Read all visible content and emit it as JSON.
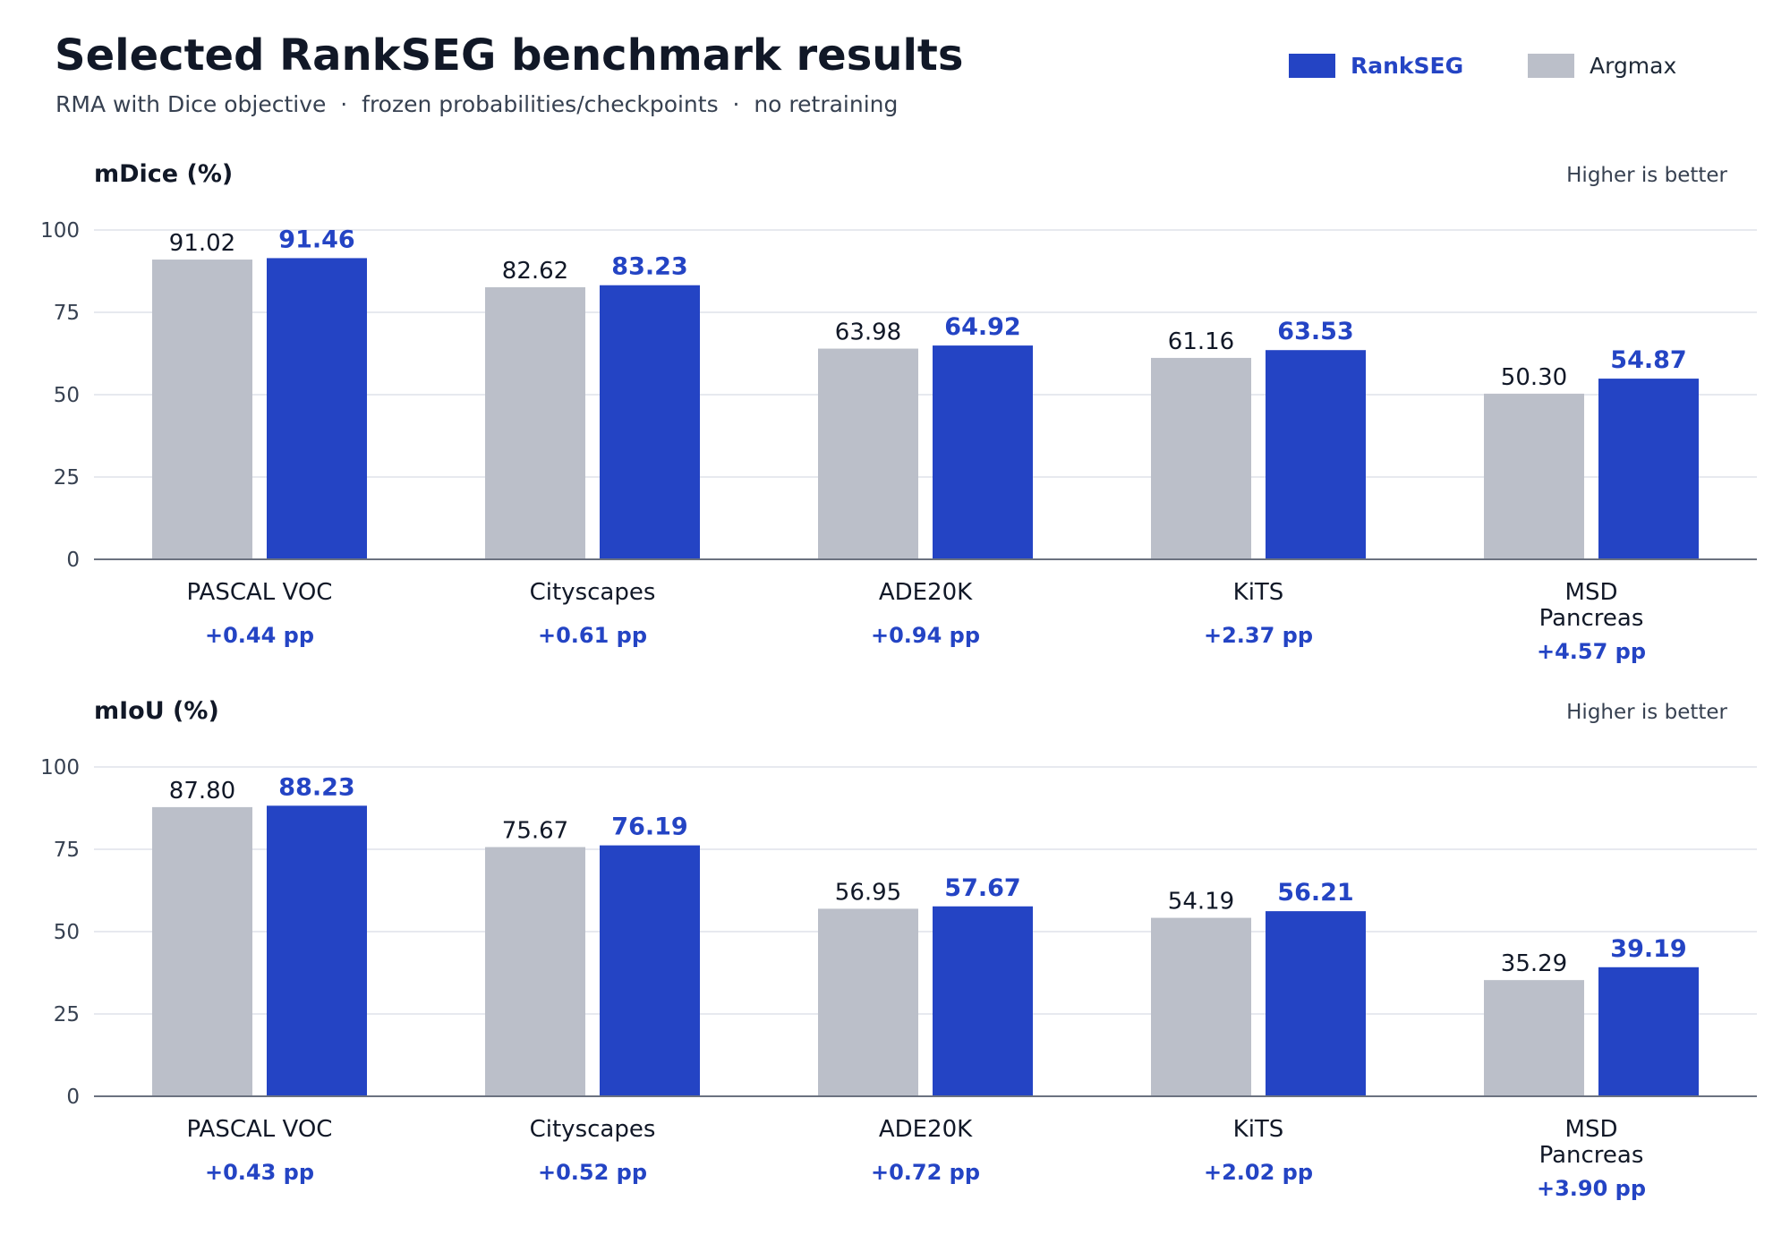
{
  "header": {
    "title": "Selected RankSEG benchmark results",
    "subtitle": "RMA with Dice objective  ·  frozen probabilities/checkpoints  ·  no retraining"
  },
  "legend": {
    "rankseg_label": "RankSEG",
    "argmax_label": "Argmax"
  },
  "colors": {
    "rankseg": "#2444c4",
    "argmax": "#bbbfc9",
    "grid": "#dfe2ea",
    "axis": "#6b7280",
    "text_dark": "#111827",
    "text_muted": "#374151"
  },
  "chart_data": [
    {
      "type": "bar",
      "title": "mDice (%)",
      "note": "Higher is better",
      "categories": [
        "PASCAL VOC",
        "Cityscapes",
        "ADE20K",
        "KiTS",
        "MSD\nPancreas"
      ],
      "series": [
        {
          "name": "Argmax",
          "values": [
            91.02,
            82.62,
            63.98,
            61.16,
            50.3
          ],
          "labels": [
            "91.02",
            "82.62",
            "63.98",
            "61.16",
            "50.30"
          ]
        },
        {
          "name": "RankSEG",
          "values": [
            91.46,
            83.23,
            64.92,
            63.53,
            54.87
          ],
          "labels": [
            "91.46",
            "83.23",
            "64.92",
            "63.53",
            "54.87"
          ]
        }
      ],
      "deltas": [
        "+0.44 pp",
        "+0.61 pp",
        "+0.94 pp",
        "+2.37 pp",
        "+4.57 pp"
      ],
      "ylim": [
        0,
        100
      ],
      "yticks": [
        "0",
        "25",
        "50",
        "75",
        "100"
      ],
      "grid": true
    },
    {
      "type": "bar",
      "title": "mIoU (%)",
      "note": "Higher is better",
      "categories": [
        "PASCAL VOC",
        "Cityscapes",
        "ADE20K",
        "KiTS",
        "MSD\nPancreas"
      ],
      "series": [
        {
          "name": "Argmax",
          "values": [
            87.8,
            75.67,
            56.95,
            54.19,
            35.29
          ],
          "labels": [
            "87.80",
            "75.67",
            "56.95",
            "54.19",
            "35.29"
          ]
        },
        {
          "name": "RankSEG",
          "values": [
            88.23,
            76.19,
            57.67,
            56.21,
            39.19
          ],
          "labels": [
            "88.23",
            "76.19",
            "57.67",
            "56.21",
            "39.19"
          ]
        }
      ],
      "deltas": [
        "+0.43 pp",
        "+0.52 pp",
        "+0.72 pp",
        "+2.02 pp",
        "+3.90 pp"
      ],
      "ylim": [
        0,
        100
      ],
      "yticks": [
        "0",
        "25",
        "50",
        "75",
        "100"
      ],
      "grid": true
    }
  ]
}
